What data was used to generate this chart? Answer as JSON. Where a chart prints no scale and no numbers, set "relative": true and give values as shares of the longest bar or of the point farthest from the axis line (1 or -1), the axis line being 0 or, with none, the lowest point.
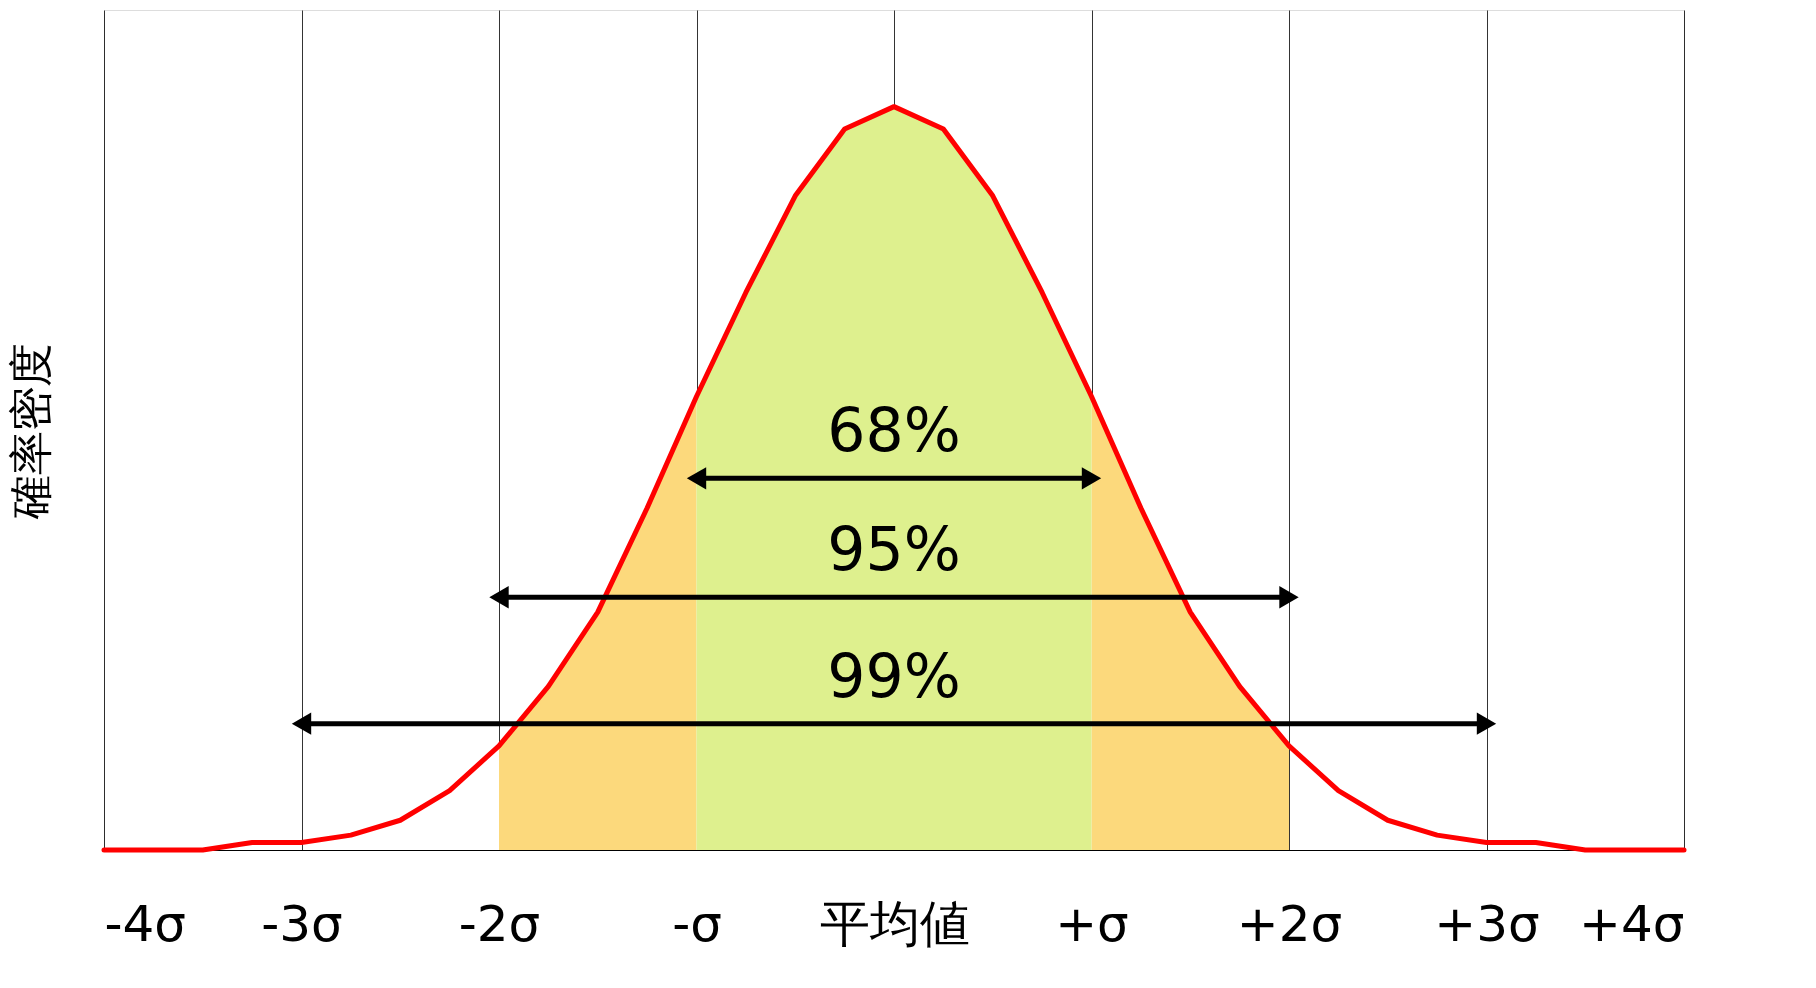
{
  "chart_data": {
    "type": "line",
    "relative": true,
    "ylabel": "確率密度",
    "xlim": [
      -4,
      4
    ],
    "xticks": [
      {
        "value": -4,
        "label": "-4σ"
      },
      {
        "value": -3,
        "label": "-3σ"
      },
      {
        "value": -2,
        "label": "-2σ"
      },
      {
        "value": -1,
        "label": "-σ"
      },
      {
        "value": 0,
        "label": "平均値"
      },
      {
        "value": 1,
        "label": "+σ"
      },
      {
        "value": 2,
        "label": "+2σ"
      },
      {
        "value": 3,
        "label": "+3σ"
      },
      {
        "value": 4,
        "label": "+4σ"
      }
    ],
    "grid": "x",
    "line_style": "solid",
    "series": [
      {
        "type": "area",
        "color": "#fcd97c",
        "x": [
          -2,
          -1.75,
          -1.5,
          -1.25,
          -1,
          0,
          1,
          1.25,
          1.5,
          1.75,
          2
        ],
        "values": [
          0.14,
          0.22,
          0.32,
          0.46,
          0.61,
          null,
          0.61,
          0.46,
          0.32,
          0.22,
          0.14
        ]
      },
      {
        "type": "area",
        "color": "#def08e",
        "x": [
          -1,
          -0.75,
          -0.5,
          -0.25,
          0,
          0.25,
          0.5,
          0.75,
          1
        ],
        "values": [
          0.61,
          0.75,
          0.88,
          0.97,
          1,
          0.97,
          0.88,
          0.75,
          0.61
        ]
      },
      {
        "color": "#ff0000",
        "marker": "none",
        "x": [
          -4,
          -3.75,
          -3.5,
          -3.25,
          -3,
          -2.75,
          -2.5,
          -2.25,
          -2,
          -1.75,
          -1.5,
          -1.25,
          -1,
          -0.75,
          -0.5,
          -0.25,
          0,
          0.25,
          0.5,
          0.75,
          1,
          1.25,
          1.5,
          1.75,
          2,
          2.25,
          2.5,
          2.75,
          3,
          3.25,
          3.5,
          3.75,
          4
        ],
        "values": [
          0,
          0,
          0,
          0.01,
          0.01,
          0.02,
          0.04,
          0.08,
          0.14,
          0.22,
          0.32,
          0.46,
          0.61,
          0.75,
          0.88,
          0.97,
          1,
          0.97,
          0.88,
          0.75,
          0.61,
          0.46,
          0.32,
          0.22,
          0.14,
          0.08,
          0.04,
          0.02,
          0.01,
          0.01,
          0,
          0,
          0
        ]
      },
      {
        "color": "#000000",
        "marker": "triangle",
        "x": [
          -1,
          1
        ],
        "values": [
          0.5,
          0.5
        ]
      },
      {
        "color": "#000000",
        "marker": "triangle",
        "x": [
          -2,
          2
        ],
        "values": [
          0.34,
          0.34
        ]
      },
      {
        "color": "#000000",
        "marker": "triangle",
        "x": [
          -3,
          3
        ],
        "values": [
          0.17,
          0.17
        ]
      }
    ],
    "annotations": [
      "68%",
      "95%",
      "99%"
    ]
  }
}
